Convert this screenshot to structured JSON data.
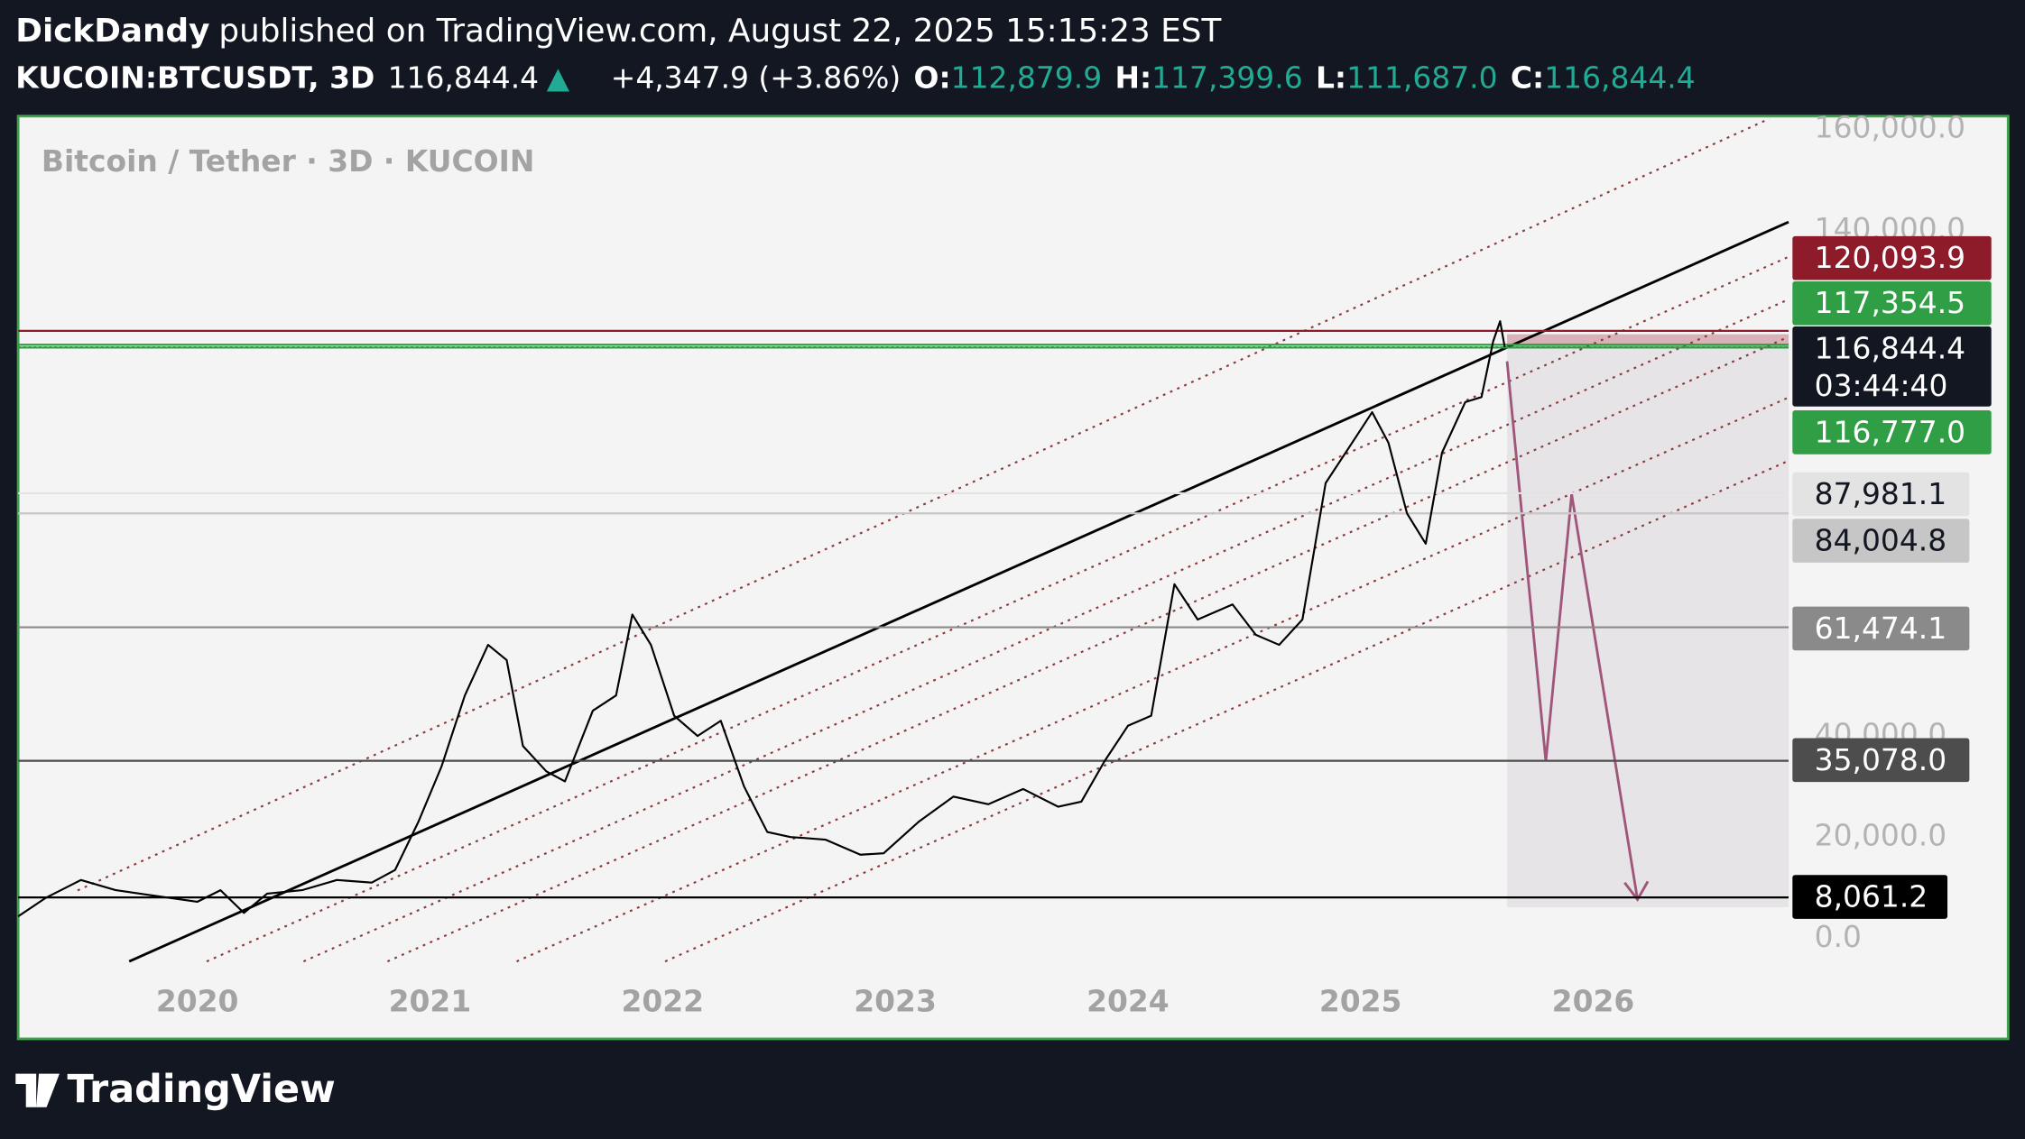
{
  "header": {
    "author": "DickDandy",
    "published": "published on TradingView.com, August 22, 2025 15:15:23 EST",
    "symbol": "KUCOIN:BTCUSDT, 3D",
    "last": "116,844.4",
    "change": "+4,347.9 (+3.86%)",
    "ohlc": [
      {
        "key": "O:",
        "value": "112,879.9"
      },
      {
        "key": "H:",
        "value": "117,399.6"
      },
      {
        "key": "L:",
        "value": "111,687.0"
      },
      {
        "key": "C:",
        "value": "116,844.4"
      }
    ]
  },
  "footer": {
    "brand": "TradingView"
  },
  "chart_data": {
    "type": "line",
    "title": "Bitcoin / Tether · 3D · KUCOIN",
    "color": "#000000",
    "x": [
      2019.23,
      2019.35,
      2019.5,
      2019.65,
      2019.8,
      2020.0,
      2020.1,
      2020.2,
      2020.3,
      2020.45,
      2020.6,
      2020.75,
      2020.85,
      2020.95,
      2021.05,
      2021.15,
      2021.25,
      2021.33,
      2021.4,
      2021.5,
      2021.58,
      2021.7,
      2021.8,
      2021.87,
      2021.95,
      2022.05,
      2022.15,
      2022.25,
      2022.35,
      2022.45,
      2022.55,
      2022.7,
      2022.85,
      2022.95,
      2023.1,
      2023.25,
      2023.4,
      2023.55,
      2023.7,
      2023.8,
      2023.9,
      2024.0,
      2024.1,
      2024.2,
      2024.3,
      2024.45,
      2024.55,
      2024.65,
      2024.75,
      2024.85,
      2024.95,
      2025.05,
      2025.12,
      2025.2,
      2025.28,
      2025.35,
      2025.45,
      2025.52,
      2025.57,
      2025.6,
      2025.62
    ],
    "values": [
      4300,
      8000,
      11500,
      9500,
      8500,
      7200,
      9500,
      5000,
      8800,
      9500,
      11500,
      11000,
      13500,
      23000,
      34000,
      48000,
      58000,
      55000,
      38000,
      33000,
      31000,
      45000,
      48000,
      64000,
      58000,
      44000,
      40000,
      43000,
      30000,
      21000,
      20000,
      19500,
      16500,
      16800,
      23000,
      28000,
      26500,
      29500,
      26000,
      27000,
      35000,
      42000,
      44000,
      70000,
      63000,
      66000,
      60000,
      58000,
      63000,
      90000,
      97000,
      104000,
      98000,
      84000,
      78000,
      96000,
      106000,
      107000,
      118000,
      122000,
      116844.4
    ],
    "xlim": [
      2019.23,
      2026.84
    ],
    "xticks": [
      2020,
      2021,
      2022,
      2023,
      2024,
      2025,
      2026
    ],
    "ylim": [
      0,
      160000
    ],
    "yticks": [
      {
        "value": 0,
        "label": "0.0"
      },
      {
        "value": 20000,
        "label": "20,000.0"
      },
      {
        "value": 40000,
        "label": "40,000.0"
      },
      {
        "value": 140000,
        "label": "140,000.0"
      },
      {
        "value": 160000,
        "label": "160,000.0"
      }
    ],
    "countdown": "03:44:40",
    "price_levels": {
      "values": [
        120093.9,
        117354.5,
        116844.4,
        116777.0,
        87981.1,
        84004.8,
        61474.1,
        35078.0,
        8061.2
      ],
      "value_labels": [
        "120,093.9",
        "117,354.5",
        "116,844.4",
        "116,777.0",
        "87,981.1",
        "84,004.8",
        "61,474.1",
        "35,078.0",
        "8,061.2"
      ],
      "colors": [
        "#8e1b2a",
        "#2f9e44",
        "#131722",
        "#2f9e44",
        "#e3e3e3",
        "#c6c6c6",
        "#8a8a8a",
        "#4d4d4d",
        "#000000"
      ],
      "text_colors": [
        "#ffffff",
        "#ffffff",
        "#ffffff",
        "#ffffff",
        "#131722",
        "#131722",
        "#ffffff",
        "#ffffff",
        "#ffffff"
      ]
    }
  }
}
